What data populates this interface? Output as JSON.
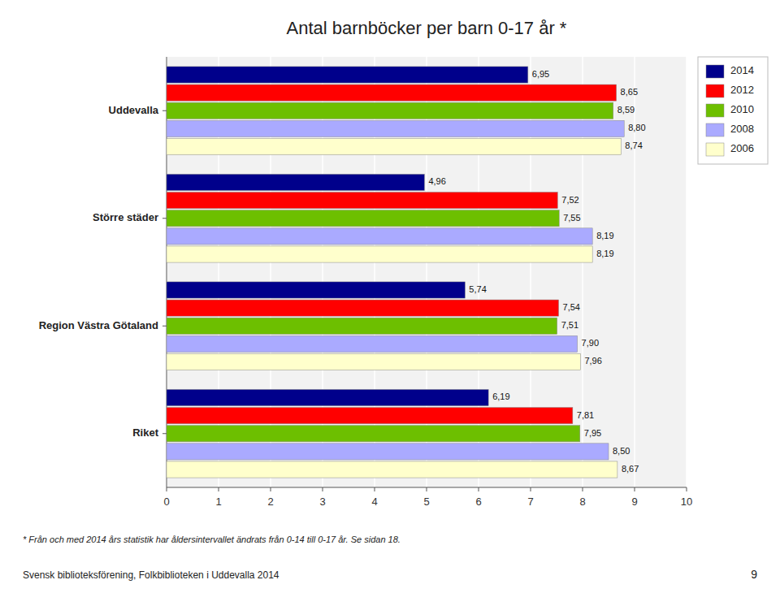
{
  "chart_data": {
    "type": "bar",
    "orientation": "horizontal",
    "title": "Antal barnböcker per barn 0-17 år *",
    "categories": [
      "Uddevalla",
      "Större städer",
      "Region Västra Götaland",
      "Riket"
    ],
    "series": [
      {
        "name": "2014",
        "color": "#00008B",
        "values": [
          6.95,
          4.96,
          5.74,
          6.19
        ],
        "value_labels": [
          "6,95",
          "4,96",
          "5,74",
          "6,19"
        ]
      },
      {
        "name": "2012",
        "color": "#FF0000",
        "values": [
          8.65,
          7.52,
          7.54,
          7.81
        ],
        "value_labels": [
          "8,65",
          "7,52",
          "7,54",
          "7,81"
        ]
      },
      {
        "name": "2010",
        "color": "#6DBF00",
        "values": [
          8.59,
          7.55,
          7.51,
          7.95
        ],
        "value_labels": [
          "8,59",
          "7,55",
          "7,51",
          "7,95"
        ]
      },
      {
        "name": "2008",
        "color": "#AAAAFF",
        "values": [
          8.8,
          8.19,
          7.9,
          8.5
        ],
        "value_labels": [
          "8,80",
          "8,19",
          "7,90",
          "8,50"
        ]
      },
      {
        "name": "2006",
        "color": "#FFFFCC",
        "values": [
          8.74,
          8.19,
          7.96,
          8.67
        ],
        "value_labels": [
          "8,74",
          "8,19",
          "7,96",
          "8,67"
        ]
      }
    ],
    "xlim": [
      0,
      10
    ],
    "xticks": [
      0,
      1,
      2,
      3,
      4,
      5,
      6,
      7,
      8,
      9,
      10
    ],
    "grid": true,
    "legend": "right",
    "data_labels": true,
    "annotations": [
      "* Från och med 2014 års statistik har åldersintervallet ändrats från 0-14 till 0-17 år. Se sidan 18.",
      "Svensk biblioteksförening, Folkbiblioteken i Uddevalla 2014",
      "9"
    ]
  }
}
